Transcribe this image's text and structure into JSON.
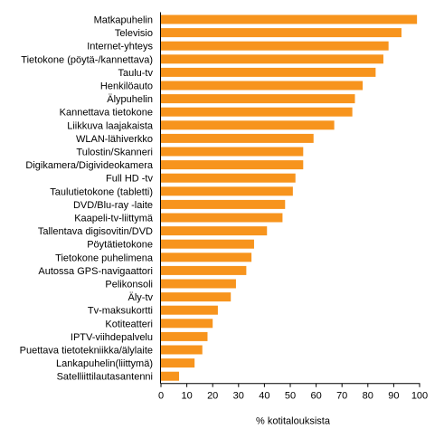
{
  "chart_data": {
    "type": "bar",
    "orientation": "horizontal",
    "categories": [
      "Matkapuhelin",
      "Televisio",
      "Internet-yhteys",
      "Tietokone (pöytä-/kannettava)",
      "Taulu-tv",
      "Henkilöauto",
      "Älypuhelin",
      "Kannettava tietokone",
      "Liikkuva laajakaista",
      "WLAN-lähiverkko",
      "Tulostin/Skanneri",
      "Digikamera/Digivideokamera",
      "Full HD -tv",
      "Taulutietokone (tabletti)",
      "DVD/Blu-ray -laite",
      "Kaapeli-tv-liittymä",
      "Tallentava digisovitin/DVD",
      "Pöytätietokone",
      "Tietokone puhelimena",
      "Autossa GPS-navigaattori",
      "Pelikonsoli",
      "Äly-tv",
      "Tv-maksukortti",
      "Kotiteatteri",
      "IPTV-viihdepalvelu",
      "Puettava tietotekniikka/älylaite",
      "Lankapuhelin(liittymä)",
      "Satelliittilautasantenni"
    ],
    "values": [
      99,
      93,
      88,
      86,
      83,
      78,
      75,
      74,
      67,
      59,
      55,
      55,
      52,
      51,
      48,
      47,
      41,
      36,
      35,
      33,
      29,
      27,
      22,
      20,
      18,
      16,
      13,
      7
    ],
    "xlabel": "% kotitalouksista",
    "ylabel": "",
    "xlim": [
      0,
      100
    ],
    "xticks": [
      "0",
      "10",
      "20",
      "30",
      "40",
      "50",
      "60",
      "70",
      "80",
      "90",
      "100"
    ],
    "grid": false,
    "legend": "none",
    "bar_color": "#f7941d",
    "axis_color": "#000000"
  }
}
